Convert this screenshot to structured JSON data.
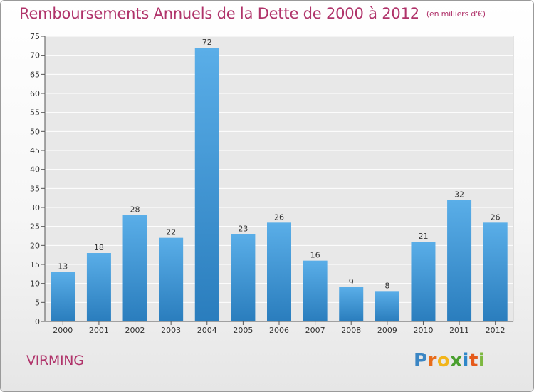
{
  "header": {
    "title": "Remboursements Annuels de la Dette de 2000 à 2012",
    "unit": "(en milliers d'€)"
  },
  "footer": {
    "commune": "VIRMING",
    "logo_text": "Proxiti"
  },
  "colors": {
    "title": "#b0336a",
    "bar_top": "#5aaee8",
    "bar_bottom": "#2a7dbd"
  },
  "chart_data": {
    "type": "bar",
    "title": "Remboursements Annuels de la Dette de 2000 à 2012",
    "xlabel": "",
    "ylabel": "",
    "categories": [
      "2000",
      "2001",
      "2002",
      "2003",
      "2004",
      "2005",
      "2006",
      "2007",
      "2008",
      "2009",
      "2010",
      "2011",
      "2012"
    ],
    "values": [
      13,
      18,
      28,
      22,
      72,
      23,
      26,
      16,
      9,
      8,
      21,
      32,
      26
    ],
    "ylim": [
      0,
      75
    ],
    "yticks": [
      0,
      5,
      10,
      15,
      20,
      25,
      30,
      35,
      40,
      45,
      50,
      55,
      60,
      65,
      70,
      75
    ],
    "grid": true,
    "data_labels": true
  }
}
